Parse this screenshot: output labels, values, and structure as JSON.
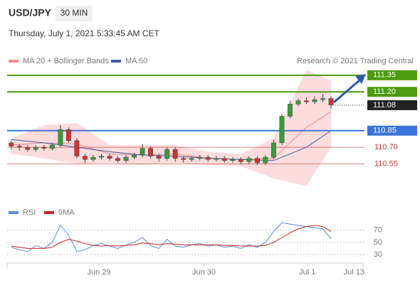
{
  "header": {
    "symbol": "USD/JPY",
    "interval": "30 MIN",
    "timestamp": "Thursday, July 1, 2021 5:33:45 AM CET"
  },
  "chart_data": [
    {
      "type": "candlestick",
      "credit": "Research © 2021 Trading Central",
      "up_color": "#3a9a3a",
      "down_color": "#cc3333",
      "open": [
        110.74,
        110.71,
        110.7,
        110.68,
        110.7,
        110.69,
        110.72,
        110.86,
        110.76,
        110.62,
        110.59,
        110.61,
        110.62,
        110.6,
        110.58,
        110.61,
        110.63,
        110.69,
        110.62,
        110.6,
        110.68,
        110.6,
        110.59,
        110.6,
        110.61,
        110.59,
        110.6,
        110.58,
        110.59,
        110.57,
        110.6,
        110.56,
        110.61,
        110.74,
        110.98,
        111.09,
        111.12,
        111.11,
        111.13,
        111.14
      ],
      "high": [
        110.76,
        110.73,
        110.72,
        110.72,
        110.72,
        110.74,
        110.9,
        110.88,
        110.78,
        110.64,
        110.63,
        110.64,
        110.64,
        110.62,
        110.63,
        110.65,
        110.73,
        110.71,
        110.64,
        110.7,
        110.7,
        110.62,
        110.62,
        110.63,
        110.63,
        110.62,
        110.62,
        110.61,
        110.61,
        110.62,
        110.62,
        110.63,
        110.77,
        111.0,
        111.12,
        111.14,
        111.15,
        111.16,
        111.18,
        111.16
      ],
      "low": [
        110.68,
        110.67,
        110.66,
        110.66,
        110.67,
        110.67,
        110.7,
        110.74,
        110.6,
        110.56,
        110.57,
        110.59,
        110.58,
        110.56,
        110.56,
        110.59,
        110.61,
        110.6,
        110.57,
        110.58,
        110.57,
        110.56,
        110.57,
        110.58,
        110.57,
        110.57,
        110.56,
        110.56,
        110.55,
        110.55,
        110.54,
        110.54,
        110.59,
        110.72,
        110.96,
        111.07,
        111.09,
        111.09,
        111.11,
        111.05
      ],
      "close": [
        110.71,
        110.7,
        110.68,
        110.7,
        110.69,
        110.72,
        110.86,
        110.76,
        110.62,
        110.59,
        110.61,
        110.62,
        110.6,
        110.58,
        110.61,
        110.63,
        110.69,
        110.62,
        110.6,
        110.68,
        110.6,
        110.59,
        110.6,
        110.61,
        110.59,
        110.6,
        110.58,
        110.59,
        110.57,
        110.6,
        110.56,
        110.61,
        110.74,
        110.98,
        111.09,
        111.12,
        111.11,
        111.13,
        111.14,
        111.08
      ],
      "overlays": [
        {
          "name": "MA 20 + Bollinger Bands",
          "color": "#f08a8a",
          "band_color": "#fbd3d3",
          "x": [
            0,
            4,
            8,
            12,
            16,
            20,
            24,
            28,
            32,
            36,
            39
          ],
          "values": [
            110.72,
            110.74,
            110.73,
            110.64,
            110.63,
            110.64,
            110.6,
            110.59,
            110.6,
            110.88,
            111.02
          ],
          "upper": [
            110.78,
            110.9,
            110.92,
            110.72,
            110.72,
            110.72,
            110.66,
            110.64,
            110.78,
            111.4,
            111.3
          ],
          "lower": [
            110.64,
            110.6,
            110.55,
            110.56,
            110.54,
            110.56,
            110.54,
            110.53,
            110.42,
            110.35,
            110.7
          ]
        },
        {
          "name": "MA 50",
          "color": "#3a5fa8",
          "x": [
            0,
            4,
            8,
            12,
            16,
            20,
            24,
            28,
            32,
            36,
            39
          ],
          "values": [
            110.77,
            110.74,
            110.7,
            110.66,
            110.63,
            110.62,
            110.6,
            110.59,
            110.58,
            110.7,
            110.85
          ]
        }
      ],
      "levels": [
        {
          "value": 111.35,
          "label": "111.35",
          "color": "#4c9a0e",
          "boxed": true,
          "style": "solid"
        },
        {
          "value": 111.2,
          "label": "111.20",
          "color": "#4c9a0e",
          "boxed": true,
          "style": "solid"
        },
        {
          "value": 111.08,
          "label": "111.08",
          "color": "#222222",
          "boxed": true,
          "style": "dotted"
        },
        {
          "value": 110.85,
          "label": "110.85",
          "color": "#3a74d8",
          "boxed": true,
          "style": "solid"
        },
        {
          "value": 110.7,
          "label": "110.70",
          "color": "#cc3333",
          "boxed": false,
          "style": "thin"
        },
        {
          "value": 110.55,
          "label": "110.55",
          "color": "#cc3333",
          "boxed": false,
          "style": "thin"
        }
      ],
      "xlim": [
        0,
        43.4
      ],
      "ylim": [
        110.2,
        111.58
      ]
    },
    {
      "type": "line",
      "series": [
        {
          "name": "RSI",
          "color": "#5b8bd0",
          "values": [
            42,
            38,
            35,
            45,
            40,
            50,
            78,
            62,
            35,
            38,
            45,
            48,
            44,
            40,
            46,
            50,
            58,
            45,
            40,
            55,
            44,
            42,
            46,
            48,
            44,
            46,
            42,
            44,
            40,
            46,
            42,
            50,
            68,
            82,
            80,
            78,
            76,
            74,
            72,
            56
          ]
        },
        {
          "name": "9MA",
          "color": "#cc2222",
          "values": [
            44,
            42,
            40,
            40,
            40,
            42,
            50,
            55,
            52,
            48,
            45,
            44,
            45,
            44,
            45,
            46,
            49,
            48,
            46,
            48,
            47,
            46,
            46,
            46,
            46,
            46,
            45,
            45,
            44,
            44,
            44,
            45,
            50,
            58,
            66,
            72,
            76,
            78,
            76,
            68
          ]
        }
      ],
      "xlim": [
        0,
        43.4
      ],
      "ylim": [
        16,
        86
      ],
      "yticks": [
        70,
        50,
        30
      ],
      "xticks": [
        {
          "value": 11.2,
          "label": "Jun 29"
        },
        {
          "value": 24,
          "label": "Jun 30"
        },
        {
          "value": 36.6,
          "label": "Jul 1"
        },
        {
          "value": 42.3,
          "label": "Jul 13"
        }
      ]
    }
  ]
}
